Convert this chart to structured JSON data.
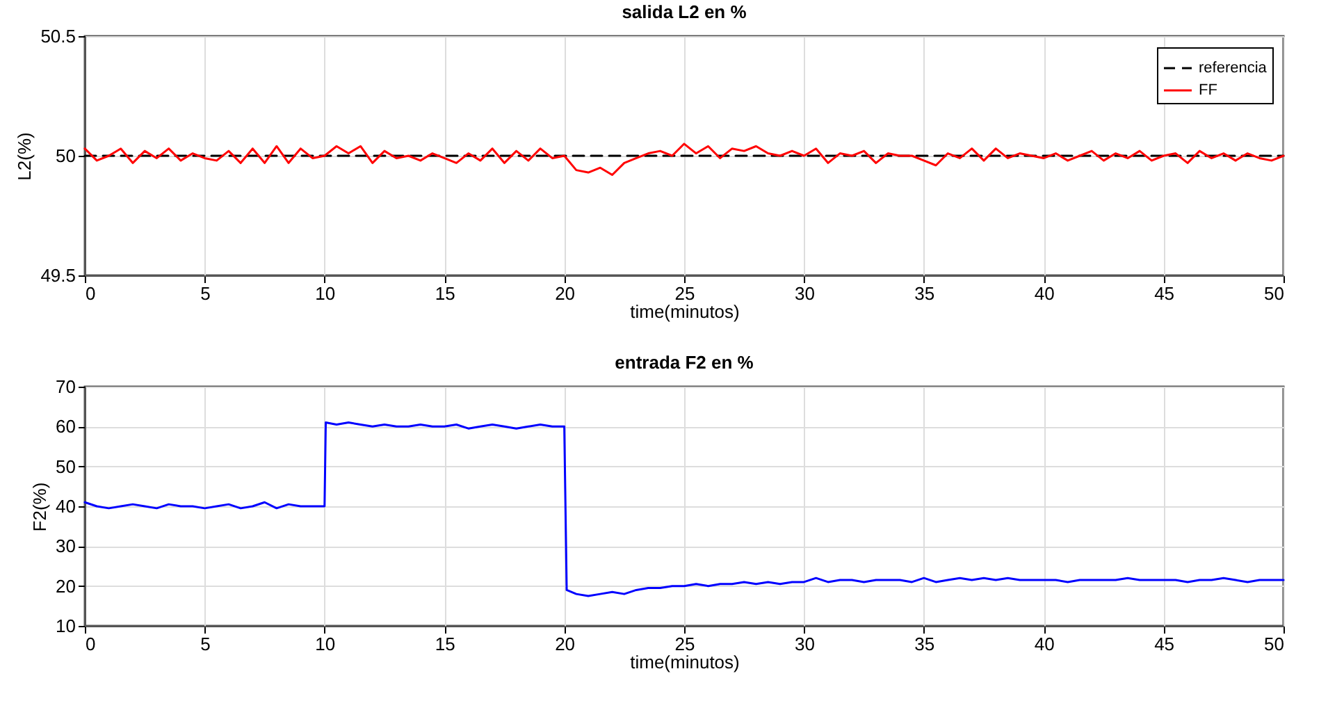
{
  "chart_data": [
    {
      "type": "line",
      "title": "salida L2 en %",
      "xlabel": "time(minutos)",
      "ylabel": "L2(%)",
      "xlim": [
        0,
        50
      ],
      "xticks": [
        0,
        5,
        10,
        15,
        20,
        25,
        30,
        35,
        40,
        45,
        50
      ],
      "ylim": [
        49.5,
        50.5
      ],
      "yticks": [
        49.5,
        {
          "value": 50,
          "label": "50"
        },
        50.5
      ],
      "grid": true,
      "legend": "top right",
      "series": [
        {
          "name": "referencia",
          "color": "#000000",
          "line_style": "dashed",
          "x": [
            0,
            50
          ],
          "values": [
            50,
            50
          ]
        },
        {
          "name": "FF",
          "color": "#ff0000",
          "line_style": "solid",
          "x": [
            0,
            0.5,
            1,
            1.5,
            2,
            2.5,
            3,
            3.5,
            4,
            4.5,
            5,
            5.5,
            6,
            6.5,
            7,
            7.5,
            8,
            8.5,
            9,
            9.5,
            10,
            10.5,
            11,
            11.5,
            12,
            12.5,
            13,
            13.5,
            14,
            14.5,
            15,
            15.5,
            16,
            16.5,
            17,
            17.5,
            18,
            18.5,
            19,
            19.5,
            20,
            20.5,
            21,
            21.5,
            22,
            22.5,
            23,
            23.5,
            24,
            24.5,
            25,
            25.5,
            26,
            26.5,
            27,
            27.5,
            28,
            28.5,
            29,
            29.5,
            30,
            30.5,
            31,
            31.5,
            32,
            32.5,
            33,
            33.5,
            34,
            34.5,
            35,
            35.5,
            36,
            36.5,
            37,
            37.5,
            38,
            38.5,
            39,
            39.5,
            40,
            40.5,
            41,
            41.5,
            42,
            42.5,
            43,
            43.5,
            44,
            44.5,
            45,
            45.5,
            46,
            46.5,
            47,
            47.5,
            48,
            48.5,
            49,
            49.5,
            50
          ],
          "values": [
            50.03,
            49.98,
            50.0,
            50.03,
            49.97,
            50.02,
            49.99,
            50.03,
            49.98,
            50.01,
            49.99,
            49.98,
            50.02,
            49.97,
            50.03,
            49.97,
            50.04,
            49.97,
            50.03,
            49.99,
            50.0,
            50.04,
            50.01,
            50.04,
            49.97,
            50.02,
            49.99,
            50.0,
            49.98,
            50.01,
            49.99,
            49.97,
            50.01,
            49.98,
            50.03,
            49.97,
            50.02,
            49.98,
            50.03,
            49.99,
            50.0,
            49.94,
            49.93,
            49.95,
            49.92,
            49.97,
            49.99,
            50.01,
            50.02,
            50.0,
            50.05,
            50.01,
            50.04,
            49.99,
            50.03,
            50.02,
            50.04,
            50.01,
            50.0,
            50.02,
            50.0,
            50.03,
            49.97,
            50.01,
            50.0,
            50.02,
            49.97,
            50.01,
            50.0,
            50.0,
            49.98,
            49.96,
            50.01,
            49.99,
            50.03,
            49.98,
            50.03,
            49.99,
            50.01,
            50.0,
            49.99,
            50.01,
            49.98,
            50.0,
            50.02,
            49.98,
            50.01,
            49.99,
            50.02,
            49.98,
            50.0,
            50.01,
            49.97,
            50.02,
            49.99,
            50.01,
            49.98,
            50.01,
            49.99,
            49.98,
            50.0
          ]
        }
      ]
    },
    {
      "type": "line",
      "title": "entrada F2 en %",
      "xlabel": "time(minutos)",
      "ylabel": "F2(%)",
      "xlim": [
        0,
        50
      ],
      "xticks": [
        0,
        5,
        10,
        15,
        20,
        25,
        30,
        35,
        40,
        45,
        50
      ],
      "ylim": [
        10,
        70
      ],
      "yticks": [
        10,
        20,
        30,
        40,
        50,
        60,
        70
      ],
      "grid": true,
      "series": [
        {
          "color": "#0000ff",
          "line_style": "solid",
          "x": [
            0,
            0.5,
            1,
            1.5,
            2,
            2.5,
            3,
            3.5,
            4,
            4.5,
            5,
            5.5,
            6,
            6.5,
            7,
            7.5,
            8,
            8.5,
            9,
            9.5,
            10,
            10.05,
            10.5,
            11,
            11.5,
            12,
            12.5,
            13,
            13.5,
            14,
            14.5,
            15,
            15.5,
            16,
            16.5,
            17,
            17.5,
            18,
            18.5,
            19,
            19.5,
            20,
            20.1,
            20.5,
            21,
            21.5,
            22,
            22.5,
            23,
            23.5,
            24,
            24.5,
            25,
            25.5,
            26,
            26.5,
            27,
            27.5,
            28,
            28.5,
            29,
            29.5,
            30,
            30.5,
            31,
            31.5,
            32,
            32.5,
            33,
            33.5,
            34,
            34.5,
            35,
            35.5,
            36,
            36.5,
            37,
            37.5,
            38,
            38.5,
            39,
            39.5,
            40,
            40.5,
            41,
            41.5,
            42,
            42.5,
            43,
            43.5,
            44,
            44.5,
            45,
            45.5,
            46,
            46.5,
            47,
            47.5,
            48,
            48.5,
            49,
            49.5,
            50
          ],
          "values": [
            41,
            40,
            39.5,
            40,
            40.5,
            40,
            39.5,
            40.5,
            40,
            40,
            39.5,
            40,
            40.5,
            39.5,
            40,
            41,
            39.5,
            40.5,
            40,
            40,
            40,
            61,
            60.5,
            61,
            60.5,
            60,
            60.5,
            60,
            60,
            60.5,
            60,
            60,
            60.5,
            59.5,
            60,
            60.5,
            60,
            59.5,
            60,
            60.5,
            60,
            60,
            19,
            18,
            17.5,
            18,
            18.5,
            18,
            19,
            19.5,
            19.5,
            20,
            20,
            20.5,
            20,
            20.5,
            20.5,
            21,
            20.5,
            21,
            20.5,
            21,
            21,
            22,
            21,
            21.5,
            21.5,
            21,
            21.5,
            21.5,
            21.5,
            21,
            22,
            21,
            21.5,
            22,
            21.5,
            22,
            21.5,
            22,
            21.5,
            21.5,
            21.5,
            21.5,
            21,
            21.5,
            21.5,
            21.5,
            21.5,
            22,
            21.5,
            21.5,
            21.5,
            21.5,
            21,
            21.5,
            21.5,
            22,
            21.5,
            21,
            21.5,
            21.5,
            21.5
          ]
        }
      ]
    }
  ]
}
